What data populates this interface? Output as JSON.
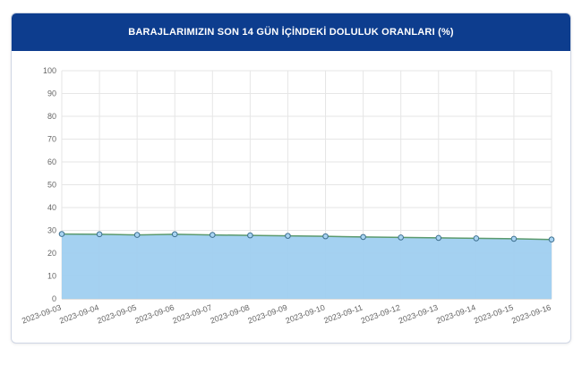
{
  "header": {
    "title": "BARAJLARIMIZIN SON 14 GÜN İÇİNDEKİ DOLULUK ORANLARI (%)"
  },
  "chart_data": {
    "type": "area",
    "title": "BARAJLARIMIZIN SON 14 GÜN İÇİNDEKİ DOLULUK ORANLARI (%)",
    "categories": [
      "2023-09-03",
      "2023-09-04",
      "2023-09-05",
      "2023-09-06",
      "2023-09-07",
      "2023-09-08",
      "2023-09-09",
      "2023-09-10",
      "2023-09-11",
      "2023-09-12",
      "2023-09-13",
      "2023-09-14",
      "2023-09-15",
      "2023-09-16"
    ],
    "series": [
      {
        "values": [
          28.4,
          28.3,
          28.0,
          28.3,
          28.0,
          27.8,
          27.6,
          27.4,
          27.1,
          26.9,
          26.7,
          26.5,
          26.3,
          26.0
        ]
      }
    ],
    "ylim": [
      0,
      100
    ],
    "yticks": [
      0,
      10,
      20,
      30,
      40,
      50,
      60,
      70,
      80,
      90,
      100
    ],
    "grid": true,
    "legend": "none",
    "colors": {
      "fill": "#9fcff0",
      "line": "#5b9a6e",
      "marker_fill": "#a9d4f2",
      "marker_stroke": "#3d6f8f",
      "grid": "#e6e6e6",
      "header": "#0d3d8e"
    }
  }
}
